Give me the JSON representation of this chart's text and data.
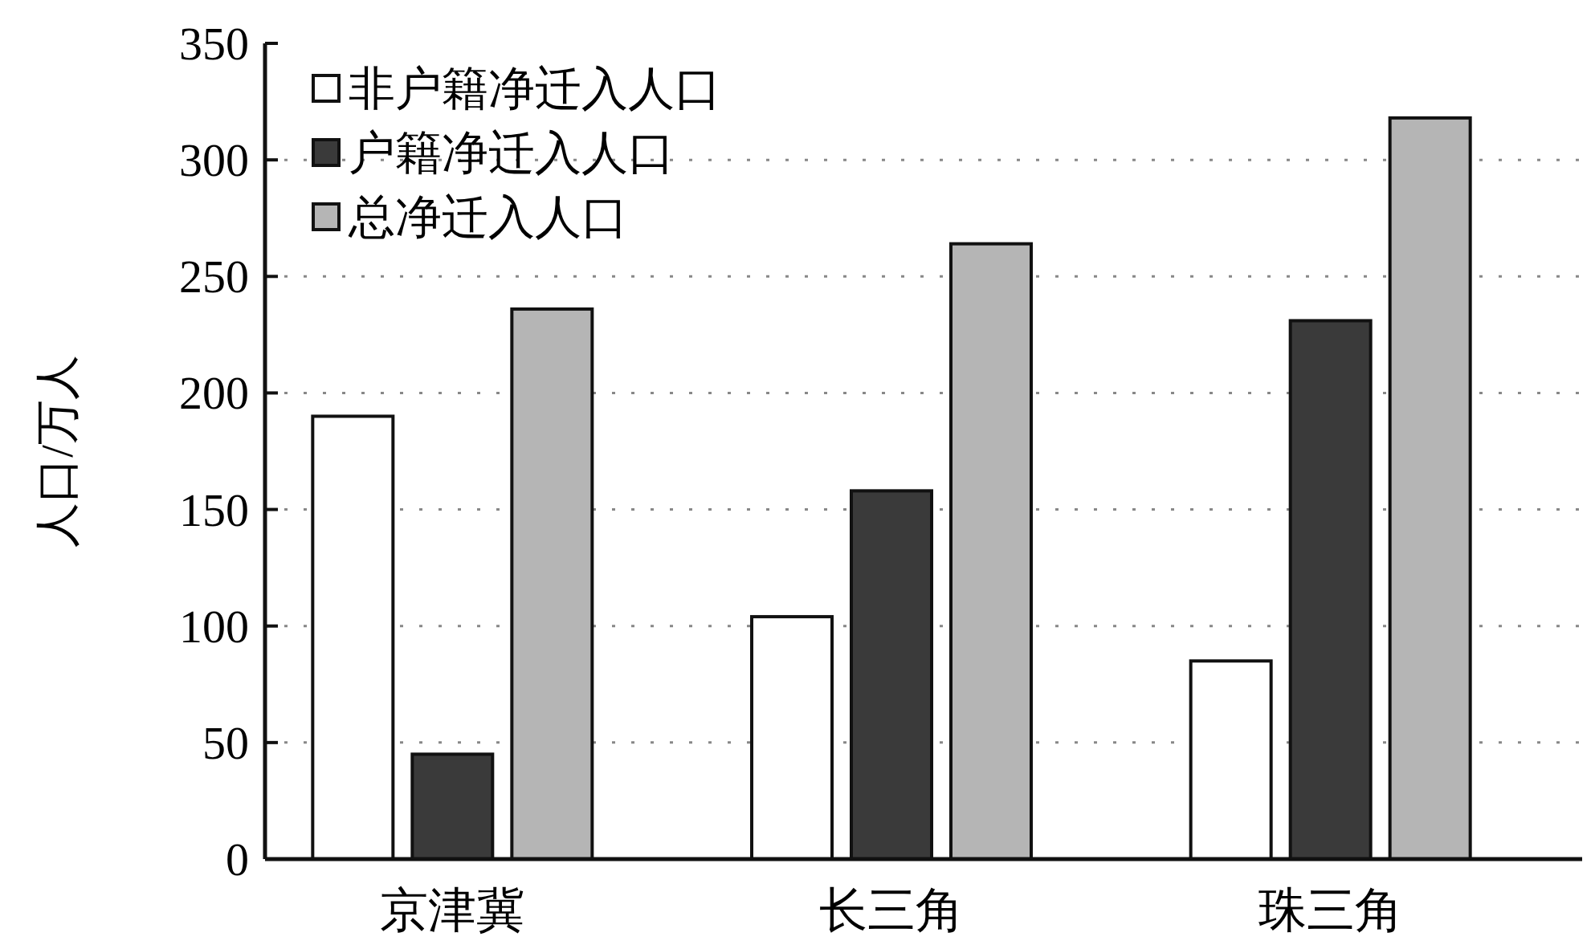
{
  "chart_data": {
    "type": "bar",
    "ylabel": "人口/万人",
    "categories": [
      "京津冀",
      "长三角",
      "珠三角"
    ],
    "series": [
      {
        "name": "非户籍净迁入人口",
        "color": "#ffffff",
        "values": [
          190,
          104,
          85
        ]
      },
      {
        "name": "户籍净迁入人口",
        "color": "#3a3a3a",
        "values": [
          45,
          158,
          231
        ]
      },
      {
        "name": "总净迁入人口",
        "color": "#b5b5b5",
        "values": [
          236,
          264,
          318
        ]
      }
    ],
    "ylim": [
      0,
      350
    ],
    "yticks": [
      0,
      50,
      100,
      150,
      200,
      250,
      300,
      350
    ],
    "grid": "y",
    "legend": "top left"
  }
}
